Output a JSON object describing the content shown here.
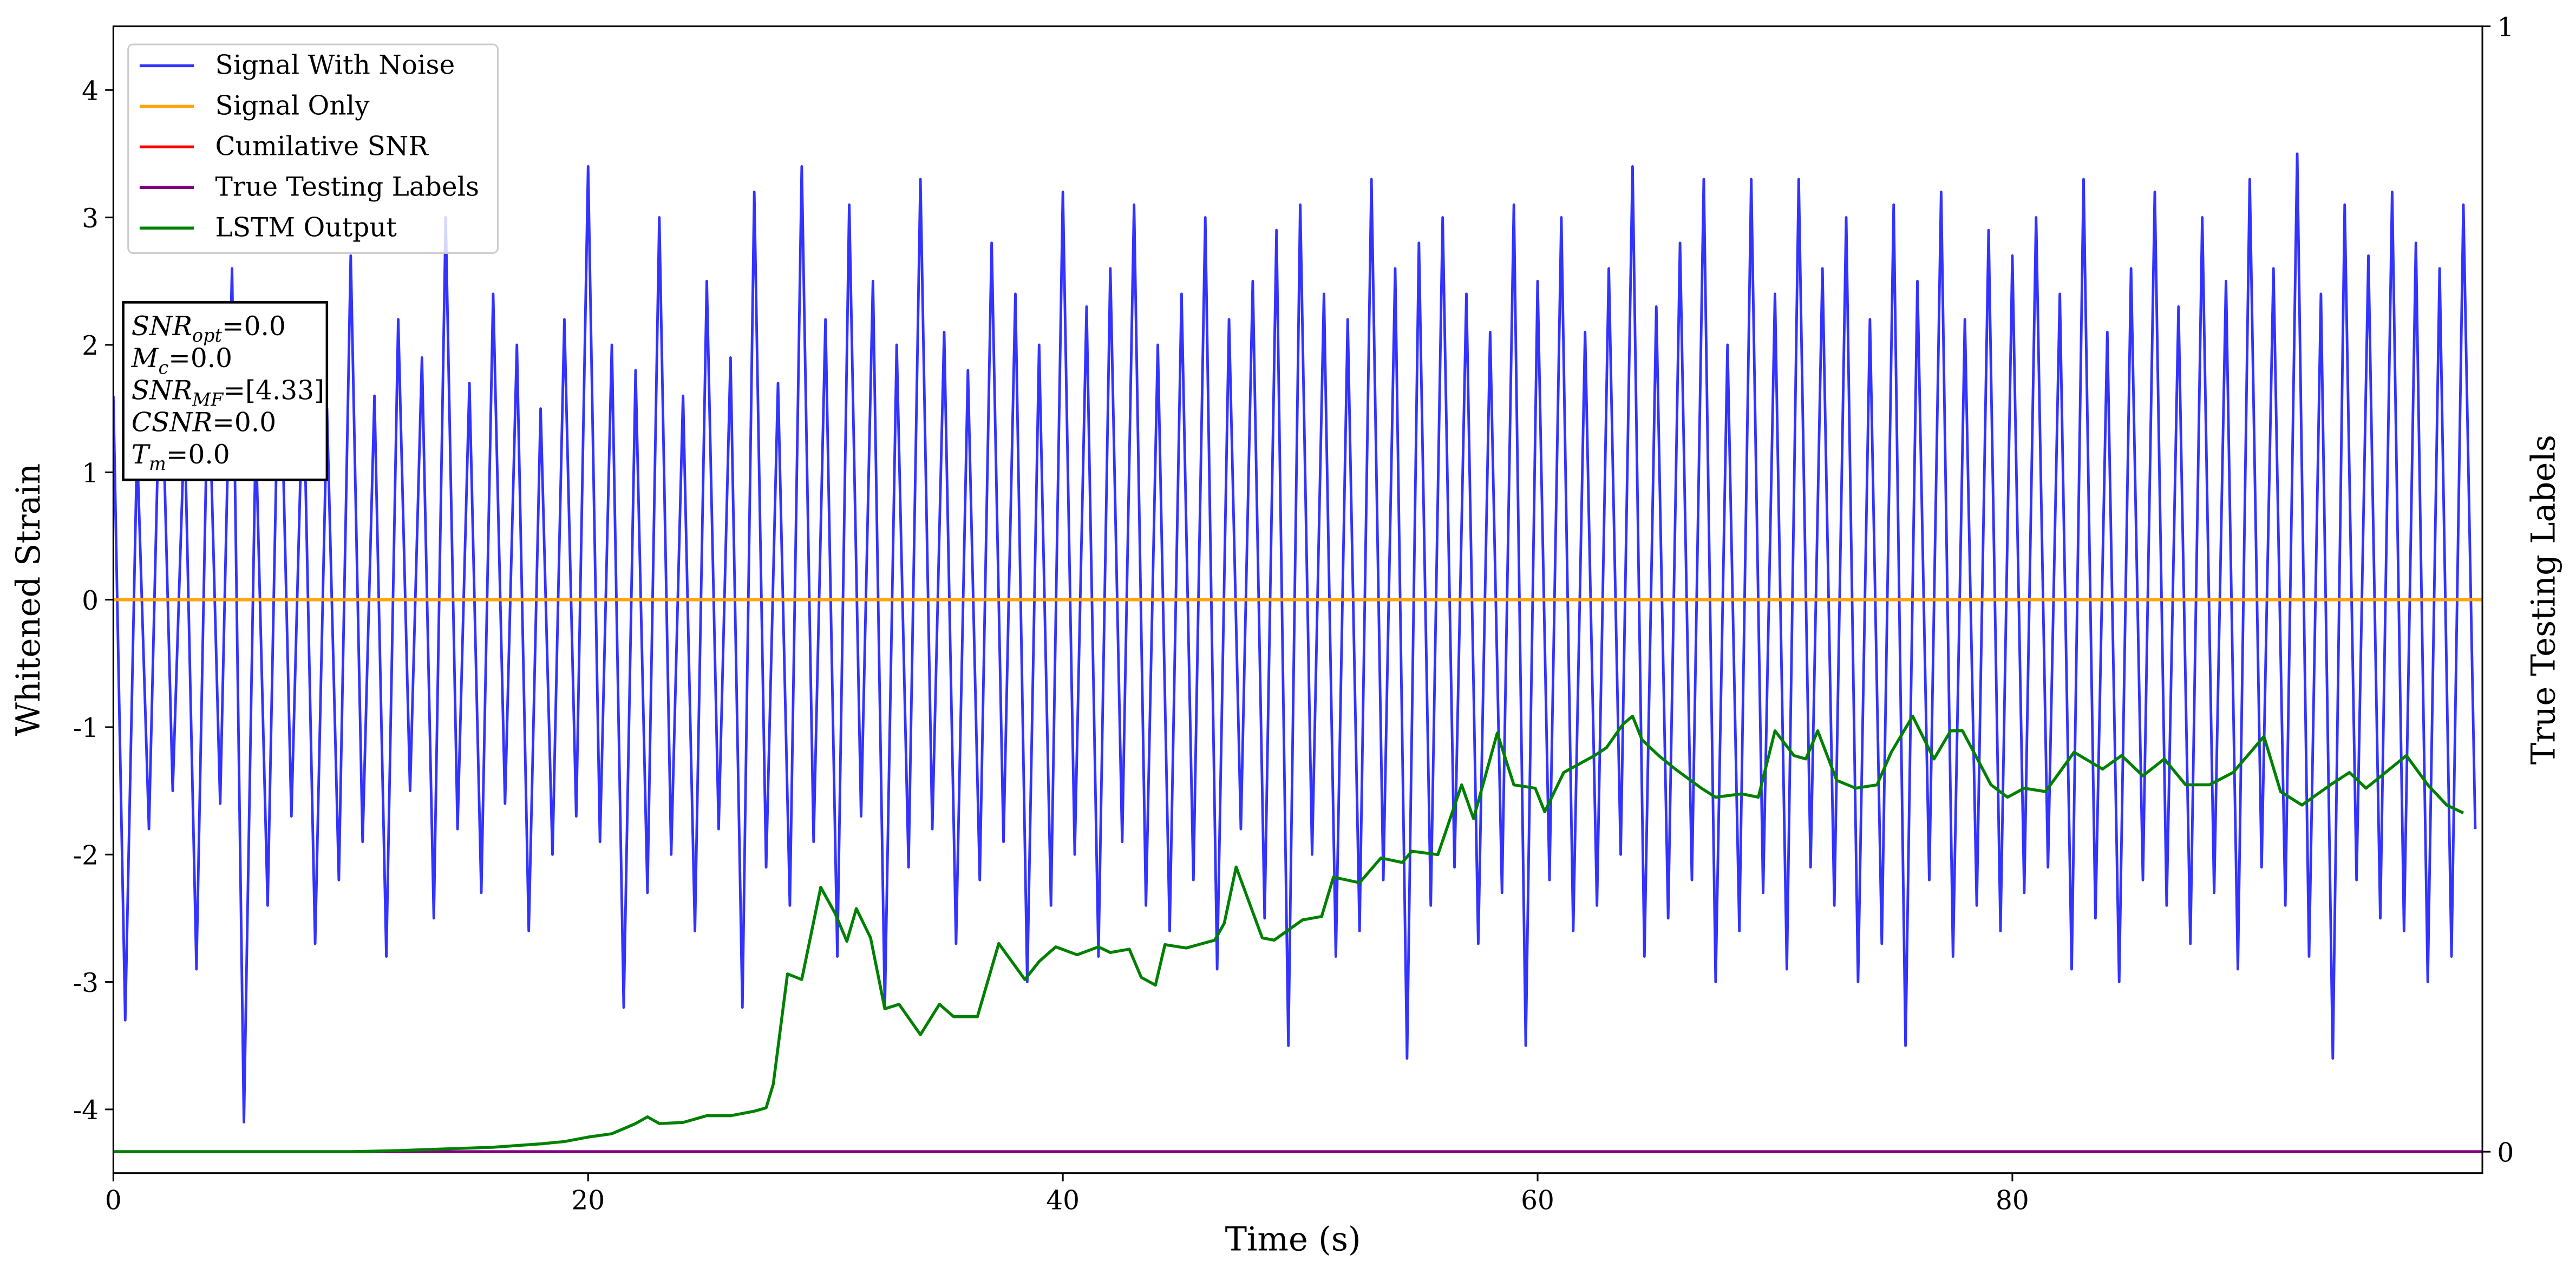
{
  "chart_data": {
    "type": "line",
    "x_label": "Time (s)",
    "y_label": "Whitened Strain",
    "y2_label": "True Testing Labels",
    "xlim": [
      0,
      99.8
    ],
    "xticks": [
      0,
      20,
      40,
      60,
      80
    ],
    "ylim": [
      -4.5,
      4.5
    ],
    "yticks": [
      -4,
      -3,
      -2,
      -1,
      0,
      1,
      2,
      3,
      4
    ],
    "y2lim": [
      -0.019,
      1
    ],
    "y2ticks": [
      0,
      1
    ],
    "grid": false,
    "legend": "upper left",
    "series": [
      {
        "name": "Signal With Noise",
        "color": "#3333ff",
        "axis": "y",
        "x": [
          0,
          0.5,
          1,
          1.5,
          2,
          2.5,
          3,
          3.5,
          4,
          4.5,
          5,
          5.5,
          6,
          6.5,
          7,
          7.5,
          8,
          8.5,
          9,
          9.5,
          10,
          10.5,
          11,
          11.5,
          12,
          12.5,
          13,
          13.5,
          14,
          14.5,
          15,
          15.5,
          16,
          16.5,
          17,
          17.5,
          18,
          18.5,
          19,
          19.5,
          20,
          20.5,
          21,
          21.5,
          22,
          22.5,
          23,
          23.5,
          24,
          24.5,
          25,
          25.5,
          26,
          26.5,
          27,
          27.5,
          28,
          28.5,
          29,
          29.5,
          30,
          30.5,
          31,
          31.5,
          32,
          32.5,
          33,
          33.5,
          34,
          34.5,
          35,
          35.5,
          36,
          36.5,
          37,
          37.5,
          38,
          38.5,
          39,
          39.5,
          40,
          40.5,
          41,
          41.5,
          42,
          42.5,
          43,
          43.5,
          44,
          44.5,
          45,
          45.5,
          46,
          46.5,
          47,
          47.5,
          48,
          48.5,
          49,
          49.5,
          50,
          50.5,
          51,
          51.5,
          52,
          52.5,
          53,
          53.5,
          54,
          54.5,
          55,
          55.5,
          56,
          56.5,
          57,
          57.5,
          58,
          58.5,
          59,
          59.5,
          60,
          60.5,
          61,
          61.5,
          62,
          62.5,
          63,
          63.5,
          64,
          64.5,
          65,
          65.5,
          66,
          66.5,
          67,
          67.5,
          68,
          68.5,
          69,
          69.5,
          70,
          70.5,
          71,
          71.5,
          72,
          72.5,
          73,
          73.5,
          74,
          74.5,
          75,
          75.5,
          76,
          76.5,
          77,
          77.5,
          78,
          78.5,
          79,
          79.5,
          80,
          80.5,
          81,
          81.5,
          82,
          82.5,
          83,
          83.5,
          84,
          84.5,
          85,
          85.5,
          86,
          86.5,
          87,
          87.5,
          88,
          88.5,
          89,
          89.5,
          90,
          90.5,
          91,
          91.5,
          92,
          92.5,
          93,
          93.5,
          94,
          94.5,
          95,
          95.5,
          96,
          96.5,
          97,
          97.5,
          98,
          98.5,
          99,
          99.5
        ],
        "values": [
          1.6,
          -3.3,
          1.2,
          -1.8,
          2.1,
          -1.5,
          1.4,
          -2.9,
          1.9,
          -1.6,
          2.6,
          -4.1,
          1.3,
          -2.4,
          2.3,
          -1.7,
          1.8,
          -2.7,
          1.5,
          -2.2,
          2.7,
          -1.9,
          1.6,
          -2.8,
          2.2,
          -1.5,
          1.9,
          -2.5,
          3.0,
          -1.8,
          1.7,
          -2.3,
          2.4,
          -1.6,
          2.0,
          -2.6,
          1.5,
          -2.0,
          2.2,
          -1.7,
          3.4,
          -1.9,
          2.0,
          -3.2,
          1.8,
          -2.3,
          3.0,
          -2.0,
          1.6,
          -2.6,
          2.5,
          -1.8,
          1.9,
          -3.2,
          3.2,
          -2.1,
          1.7,
          -2.4,
          3.4,
          -1.9,
          2.2,
          -2.8,
          3.1,
          -1.7,
          2.5,
          -3.2,
          2.0,
          -2.1,
          3.3,
          -1.8,
          2.1,
          -2.7,
          1.8,
          -2.2,
          2.8,
          -1.9,
          2.4,
          -3.0,
          2.0,
          -2.4,
          3.2,
          -2.0,
          2.3,
          -2.8,
          2.6,
          -1.9,
          3.1,
          -2.4,
          2.0,
          -2.6,
          2.4,
          -2.2,
          3.0,
          -2.9,
          2.2,
          -1.8,
          2.5,
          -2.5,
          2.9,
          -3.5,
          3.1,
          -2.0,
          2.4,
          -2.8,
          2.2,
          -2.6,
          3.3,
          -2.2,
          2.6,
          -3.6,
          2.8,
          -2.4,
          3.0,
          -2.1,
          2.4,
          -2.7,
          2.1,
          -2.3,
          3.1,
          -3.5,
          2.5,
          -2.2,
          3.0,
          -2.6,
          2.1,
          -2.4,
          2.6,
          -2.0,
          3.4,
          -2.8,
          2.3,
          -2.5,
          2.8,
          -2.2,
          3.3,
          -3.0,
          2.0,
          -2.6,
          3.3,
          -2.3,
          2.4,
          -2.9,
          3.3,
          -2.1,
          2.6,
          -2.4,
          3.0,
          -3.0,
          2.2,
          -2.7,
          3.1,
          -3.5,
          2.5,
          -2.2,
          3.2,
          -2.8,
          2.2,
          -2.4,
          2.9,
          -2.6,
          2.7,
          -2.3,
          3.0,
          -2.1,
          2.4,
          -2.9,
          3.3,
          -2.5,
          2.1,
          -3.0,
          2.6,
          -2.2,
          3.2,
          -2.4,
          2.3,
          -2.7,
          3.0,
          -2.3,
          2.5,
          -2.9,
          3.3,
          -2.1,
          2.6,
          -2.4,
          3.5,
          -2.8,
          2.4,
          -3.6,
          3.1,
          -2.2,
          2.7,
          -2.5,
          3.2,
          -2.6,
          2.8,
          -3.0,
          2.6,
          -2.8,
          3.1,
          -1.8
        ]
      },
      {
        "name": "Signal Only",
        "color": "#ffa500",
        "axis": "y",
        "x": [
          0,
          99.8
        ],
        "values": [
          0,
          0
        ]
      },
      {
        "name": "Cumilative SNR",
        "color": "#ff0000",
        "axis": "y",
        "x": [
          0,
          99.8
        ],
        "values": [
          0,
          0
        ]
      },
      {
        "name": "True Testing Labels",
        "color": "#800080",
        "axis": "y2",
        "x": [
          0,
          99.8
        ],
        "values": [
          0,
          0
        ]
      },
      {
        "name": "LSTM Output",
        "color": "#008000",
        "axis": "y2",
        "x": [
          0,
          10,
          12,
          16,
          18,
          19,
          20,
          21,
          22,
          22.5,
          23,
          24,
          25,
          26,
          27,
          27.5,
          27.8,
          28.4,
          29,
          29.8,
          30.4,
          30.9,
          31.3,
          31.9,
          32.5,
          33.1,
          34,
          34.8,
          35.4,
          36.4,
          37.3,
          38.4,
          39,
          39.7,
          40.6,
          41.5,
          42,
          42.8,
          43.3,
          43.9,
          44.3,
          45.2,
          46.4,
          46.8,
          47.3,
          48.4,
          48.9,
          50.1,
          50.9,
          51.4,
          52.5,
          53.4,
          54.3,
          54.7,
          55.8,
          56.8,
          57.3,
          58.3,
          59,
          59.9,
          60.3,
          61.1,
          62.4,
          62.9,
          63.6,
          64,
          64.4,
          65.1,
          65.8,
          66.9,
          67.5,
          68.6,
          69.3,
          70,
          70.8,
          71.3,
          71.8,
          72.6,
          73.4,
          74.3,
          74.9,
          75.8,
          76.7,
          77.4,
          77.9,
          79.1,
          79.8,
          80.5,
          81.4,
          82.6,
          83.8,
          84.6,
          85.5,
          86.4,
          87.3,
          88.3,
          89.3,
          90.6,
          91.3,
          92.2,
          93.4,
          94.2,
          94.9,
          96.6,
          97.5,
          98.3,
          99
        ],
        "values": [
          0,
          0,
          0.001,
          0.004,
          0.007,
          0.009,
          0.013,
          0.016,
          0.025,
          0.031,
          0.025,
          0.026,
          0.032,
          0.032,
          0.036,
          0.039,
          0.06,
          0.158,
          0.153,
          0.235,
          0.212,
          0.187,
          0.216,
          0.19,
          0.127,
          0.131,
          0.104,
          0.131,
          0.12,
          0.12,
          0.185,
          0.153,
          0.169,
          0.182,
          0.175,
          0.182,
          0.177,
          0.18,
          0.155,
          0.148,
          0.184,
          0.181,
          0.188,
          0.203,
          0.253,
          0.19,
          0.188,
          0.206,
          0.209,
          0.244,
          0.239,
          0.261,
          0.257,
          0.267,
          0.264,
          0.326,
          0.296,
          0.372,
          0.326,
          0.323,
          0.302,
          0.337,
          0.352,
          0.359,
          0.38,
          0.387,
          0.366,
          0.352,
          0.34,
          0.323,
          0.315,
          0.318,
          0.315,
          0.374,
          0.352,
          0.349,
          0.374,
          0.33,
          0.323,
          0.326,
          0.355,
          0.387,
          0.349,
          0.374,
          0.374,
          0.326,
          0.315,
          0.323,
          0.32,
          0.355,
          0.34,
          0.352,
          0.334,
          0.349,
          0.326,
          0.326,
          0.337,
          0.369,
          0.32,
          0.308,
          0.326,
          0.337,
          0.323,
          0.352,
          0.326,
          0.308,
          0.301
        ]
      }
    ],
    "annotation_box": [
      {
        "symbol": "SNR",
        "subscript": "opt",
        "text": "=0.0"
      },
      {
        "symbol": "M",
        "subscript": "c",
        "text": "=0.0"
      },
      {
        "symbol": "SNR",
        "subscript": "MF",
        "text": "=[4.33]"
      },
      {
        "symbol": "CSNR",
        "text": "=0.0"
      },
      {
        "symbol": "T",
        "subscript": "m",
        "text": "=0.0"
      }
    ]
  }
}
